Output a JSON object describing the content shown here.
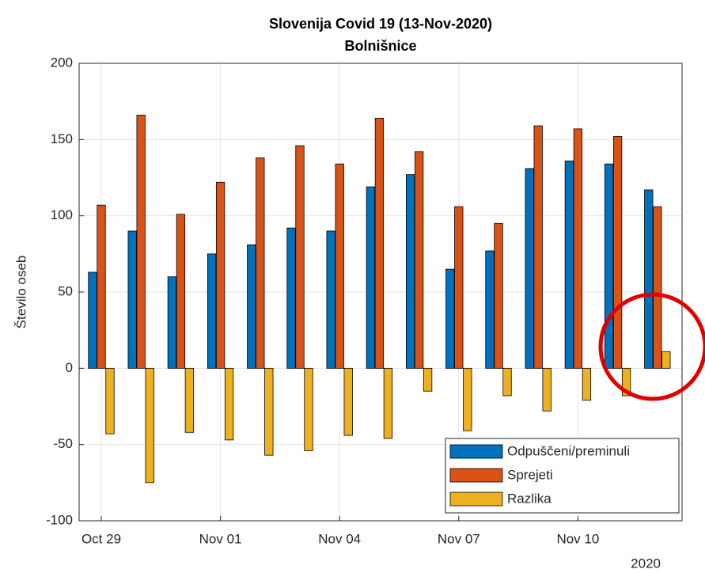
{
  "chart_data": {
    "type": "bar",
    "title": "Slovenija Covid 19 (13-Nov-2020)",
    "subtitle": "Bolnišnice",
    "y_label": "Število oseb",
    "x_secondary_label": "2020",
    "categories": [
      "Oct 29",
      null,
      null,
      "Nov 01",
      null,
      null,
      "Nov 04",
      null,
      null,
      "Nov 07",
      null,
      null,
      "Nov 10",
      null,
      null
    ],
    "series": [
      {
        "name": "Odpuščeni/preminuli",
        "color": "#0072BD",
        "values": [
          63,
          90,
          60,
          75,
          81,
          92,
          90,
          119,
          127,
          65,
          77,
          131,
          136,
          134,
          117
        ]
      },
      {
        "name": "Sprejeti",
        "color": "#D95319",
        "values": [
          107,
          166,
          101,
          122,
          138,
          146,
          134,
          164,
          142,
          106,
          95,
          159,
          157,
          152,
          106
        ]
      },
      {
        "name": "Razlika",
        "color": "#EDB120",
        "values": [
          -43,
          -75,
          -42,
          -47,
          -57,
          -54,
          -44,
          -46,
          -15,
          -41,
          -18,
          -28,
          -21,
          -18,
          11
        ]
      }
    ],
    "ylim": [
      -100,
      200
    ],
    "yticks": [
      -100,
      -50,
      0,
      50,
      100,
      150,
      200
    ],
    "grid": true,
    "legend_position": "southeast"
  }
}
